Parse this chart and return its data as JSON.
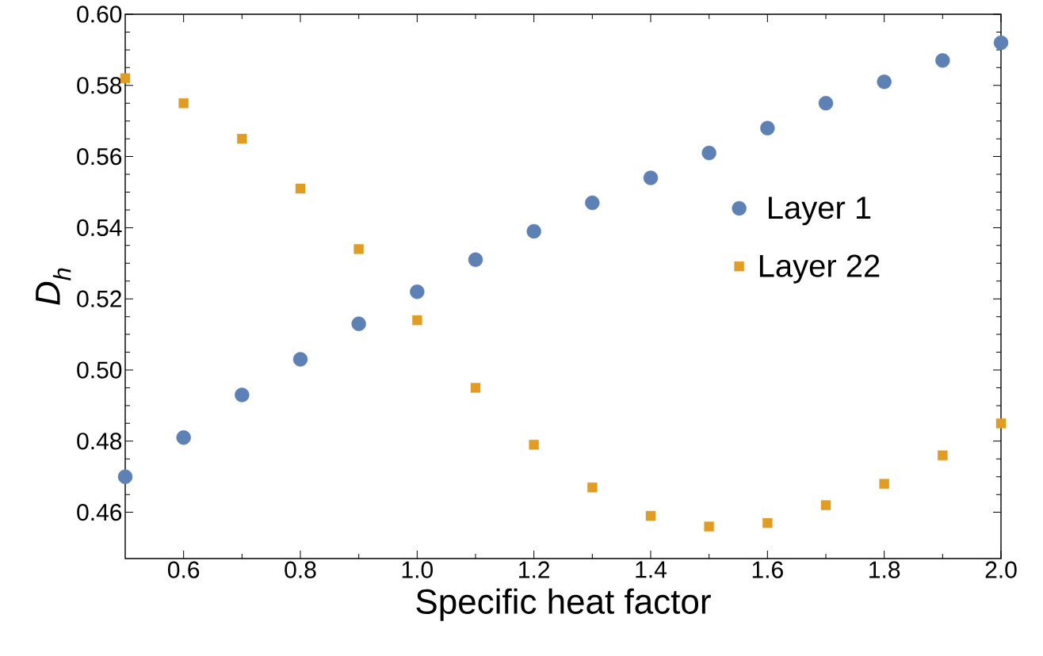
{
  "chart_data": {
    "type": "scatter",
    "xlabel": "Specific heat factor",
    "ylabel": "D$_{h}$",
    "x": [
      0.5,
      0.6,
      0.7,
      0.8,
      0.9,
      1.0,
      1.1,
      1.2,
      1.3,
      1.4,
      1.5,
      1.6,
      1.7,
      1.8,
      1.9,
      2.0
    ],
    "series": [
      {
        "name": "Layer 1",
        "color": "#5e81b5",
        "marker": "circle",
        "values": [
          0.47,
          0.481,
          0.493,
          0.503,
          0.513,
          0.522,
          0.531,
          0.539,
          0.547,
          0.554,
          0.561,
          0.568,
          0.575,
          0.581,
          0.587,
          0.592
        ]
      },
      {
        "name": "Layer 22",
        "color": "#e19c24",
        "marker": "square",
        "values": [
          0.582,
          0.575,
          0.565,
          0.551,
          0.534,
          0.514,
          0.495,
          0.479,
          0.467,
          0.459,
          0.456,
          0.457,
          0.462,
          0.468,
          0.476,
          0.485
        ]
      }
    ],
    "xlim": [
      0.5,
      2.0
    ],
    "ylim": [
      0.447,
      0.6
    ],
    "xticks": [
      0.6,
      0.8,
      {
        "value": 1.0,
        "label": "1.0"
      },
      1.2,
      1.4,
      1.6,
      1.8,
      {
        "value": 2.0,
        "label": "2.0"
      }
    ],
    "yticks": [
      {
        "value": 0.46,
        "label": "0.46"
      },
      {
        "value": 0.48,
        "label": "0.48"
      },
      {
        "value": 0.5,
        "label": "0.50"
      },
      {
        "value": 0.52,
        "label": "0.52"
      },
      {
        "value": 0.54,
        "label": "0.54"
      },
      {
        "value": 0.56,
        "label": "0.56"
      },
      {
        "value": 0.58,
        "label": "0.58"
      },
      {
        "value": 0.6,
        "label": "0.60"
      }
    ],
    "grid": false,
    "legend": "right"
  }
}
